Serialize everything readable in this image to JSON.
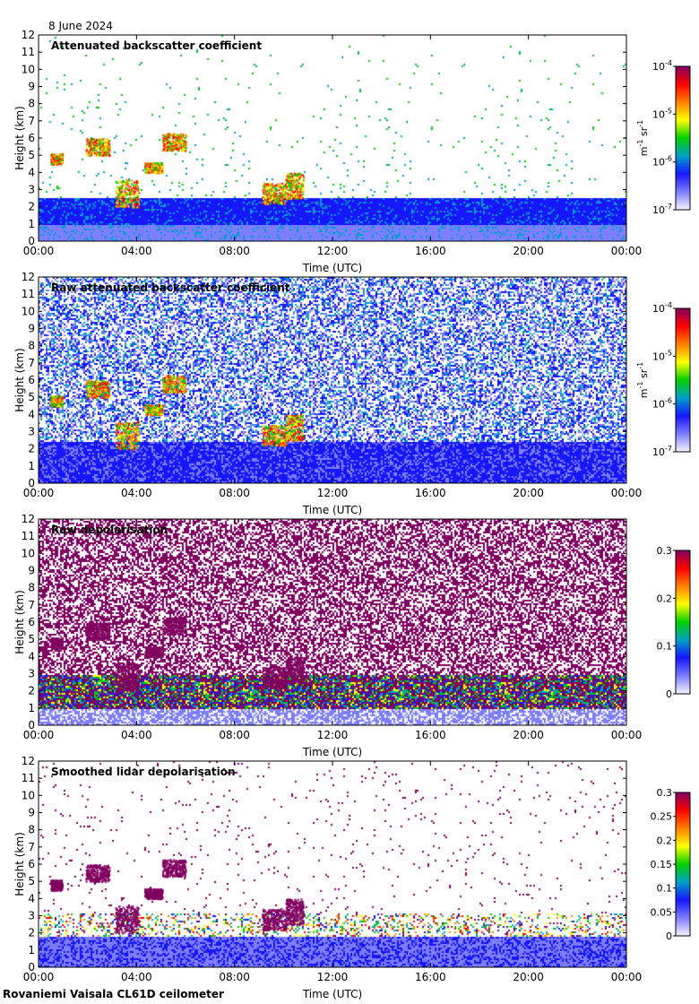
{
  "date": "8 June 2024",
  "footer": "Rovaniemi Vaisala CL61D ceilometer",
  "chart_data": [
    {
      "type": "heatmap",
      "title": "Attenuated backscatter coefficient",
      "xlabel": "Time (UTC)",
      "ylabel": "Height (km)",
      "xticks": [
        "00:00",
        "04:00",
        "08:00",
        "12:00",
        "16:00",
        "20:00",
        "00:00"
      ],
      "yticks": [
        "0",
        "1",
        "2",
        "3",
        "4",
        "5",
        "6",
        "7",
        "8",
        "9",
        "10",
        "11",
        "12"
      ],
      "ylim": [
        0,
        12
      ],
      "scale": "log",
      "colorbar_ticks": [
        {
          "base": "10",
          "exp": "-7"
        },
        {
          "base": "10",
          "exp": "-6"
        },
        {
          "base": "10",
          "exp": "-5"
        },
        {
          "base": "10",
          "exp": "-4"
        }
      ],
      "colorbar_label": {
        "m": "m",
        "m_exp": "-1",
        "sr": " sr",
        "sr_exp": "-1"
      },
      "colormap": [
        "#f4f4ff",
        "#7d7dff",
        "#1616ff",
        "#00a0c8",
        "#00d000",
        "#ffff00",
        "#ff8000",
        "#ff0000",
        "#800060"
      ]
    },
    {
      "type": "heatmap",
      "title": "Raw attenuated backscatter coefficient",
      "xlabel": "Time (UTC)",
      "ylabel": "Height (km)",
      "xticks": [
        "00:00",
        "04:00",
        "08:00",
        "12:00",
        "16:00",
        "20:00",
        "00:00"
      ],
      "yticks": [
        "0",
        "1",
        "2",
        "3",
        "4",
        "5",
        "6",
        "7",
        "8",
        "9",
        "10",
        "11",
        "12"
      ],
      "ylim": [
        0,
        12
      ],
      "scale": "log",
      "colorbar_ticks": [
        {
          "base": "10",
          "exp": "-7"
        },
        {
          "base": "10",
          "exp": "-6"
        },
        {
          "base": "10",
          "exp": "-5"
        },
        {
          "base": "10",
          "exp": "-4"
        }
      ],
      "colorbar_label": {
        "m": "m",
        "m_exp": "-1",
        "sr": " sr",
        "sr_exp": "-1"
      },
      "colormap": [
        "#f4f4ff",
        "#7d7dff",
        "#1616ff",
        "#00a0c8",
        "#00d000",
        "#ffff00",
        "#ff8000",
        "#ff0000",
        "#800060"
      ]
    },
    {
      "type": "heatmap",
      "title": "Raw depolarisation",
      "xlabel": "Time (UTC)",
      "ylabel": "Height (km)",
      "xticks": [
        "00:00",
        "04:00",
        "08:00",
        "12:00",
        "16:00",
        "20:00",
        "00:00"
      ],
      "yticks": [
        "0",
        "1",
        "2",
        "3",
        "4",
        "5",
        "6",
        "7",
        "8",
        "9",
        "10",
        "11",
        "12"
      ],
      "ylim": [
        0,
        12
      ],
      "scale": "linear",
      "colorbar_ticks": [
        "0",
        "0.1",
        "0.2",
        "0.3"
      ],
      "colorbar_range": [
        0,
        0.3
      ],
      "colormap": [
        "#f4f4ff",
        "#7d7dff",
        "#1616ff",
        "#00a0c8",
        "#00d000",
        "#ffff00",
        "#ff8000",
        "#ff0000",
        "#800060"
      ]
    },
    {
      "type": "heatmap",
      "title": "Smoothed lidar depolarisation",
      "xlabel": "Time (UTC)",
      "ylabel": "Height (km)",
      "xticks": [
        "00:00",
        "04:00",
        "08:00",
        "12:00",
        "16:00",
        "20:00",
        "00:00"
      ],
      "yticks": [
        "0",
        "1",
        "2",
        "3",
        "4",
        "5",
        "6",
        "7",
        "8",
        "9",
        "10",
        "11",
        "12"
      ],
      "ylim": [
        0,
        12
      ],
      "scale": "linear",
      "colorbar_ticks": [
        "0",
        "0.05",
        "0.1",
        "0.15",
        "0.2",
        "0.25",
        "0.3"
      ],
      "colorbar_range": [
        0,
        0.3
      ],
      "colormap": [
        "#f4f4ff",
        "#7d7dff",
        "#1616ff",
        "#00a0c8",
        "#00d000",
        "#ffff00",
        "#ff8000",
        "#ff0000",
        "#800060"
      ]
    }
  ]
}
